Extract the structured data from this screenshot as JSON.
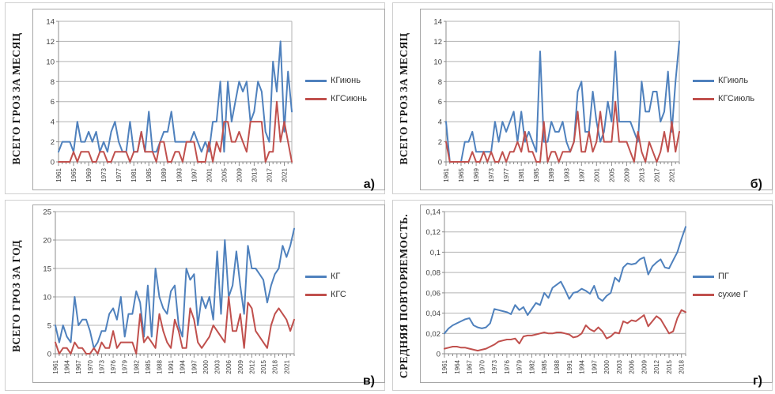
{
  "colors": {
    "series_blue": "#4F81BD",
    "series_red": "#C0504D",
    "grid": "#b3b3b3",
    "axis": "#8c8c8c",
    "plot_border": "#b3b3b3",
    "tick_text": "#3f3f3f",
    "box_border": "#a6a6a6"
  },
  "chart_data": [
    {
      "id": "a",
      "type": "line",
      "panel_label": "а)",
      "title": "",
      "xlabel": "",
      "ylabel": "ВСЕГО ГРОЗ ЗА МЕСЯЦ",
      "ylim": [
        0,
        14
      ],
      "y_tick_labels": [
        "0",
        "2",
        "4",
        "6",
        "8",
        "10",
        "12",
        "14"
      ],
      "x_start": 1961,
      "x_end": 2023,
      "x_tick_labels": [
        "1961",
        "1965",
        "1969",
        "1973",
        "1977",
        "1981",
        "1985",
        "1989",
        "1993",
        "1997",
        "2001",
        "2005",
        "2009",
        "2013",
        "2017",
        "2021"
      ],
      "grid": true,
      "legend_position": "right",
      "series": [
        {
          "name": "КГиюнь",
          "color": "series_blue",
          "values": [
            1,
            2,
            2,
            2,
            1,
            4,
            2,
            2,
            3,
            2,
            3,
            1,
            2,
            1,
            3,
            4,
            2,
            1,
            1,
            4,
            1,
            1,
            3,
            1,
            5,
            1,
            1,
            2,
            3,
            3,
            5,
            2,
            2,
            2,
            2,
            2,
            3,
            2,
            1,
            2,
            1,
            4,
            4,
            8,
            1,
            8,
            4,
            6,
            8,
            7,
            8,
            4,
            5,
            8,
            7,
            3,
            2,
            10,
            7,
            12,
            3,
            9,
            5
          ]
        },
        {
          "name": "КГСиюнь",
          "color": "series_red",
          "values": [
            0,
            0,
            0,
            0,
            1,
            0,
            1,
            1,
            1,
            0,
            0,
            1,
            1,
            0,
            0,
            1,
            1,
            1,
            1,
            0,
            1,
            1,
            3,
            1,
            1,
            1,
            0,
            2,
            2,
            0,
            0,
            1,
            1,
            0,
            2,
            2,
            2,
            0,
            0,
            0,
            2,
            0,
            2,
            1,
            4,
            4,
            2,
            2,
            3,
            2,
            1,
            4,
            4,
            4,
            4,
            0,
            1,
            1,
            6,
            2,
            4,
            2,
            0
          ]
        }
      ]
    },
    {
      "id": "b",
      "type": "line",
      "panel_label": "б)",
      "title": "",
      "xlabel": "",
      "ylabel": "ВСЕГО ГРОЗ ЗА МЕСЯЦ",
      "ylim": [
        0,
        14
      ],
      "y_tick_labels": [
        "0",
        "2",
        "4",
        "6",
        "8",
        "10",
        "12",
        "14"
      ],
      "x_start": 1961,
      "x_end": 2023,
      "x_tick_labels": [
        "1961",
        "1965",
        "1969",
        "1973",
        "1977",
        "1981",
        "1985",
        "1989",
        "1993",
        "1997",
        "2001",
        "2005",
        "2009",
        "2013",
        "2017",
        "2021"
      ],
      "grid": true,
      "legend_position": "right",
      "series": [
        {
          "name": "КГиюль",
          "color": "series_blue",
          "values": [
            4,
            0,
            0,
            0,
            0,
            2,
            2,
            3,
            1,
            1,
            1,
            1,
            1,
            4,
            2,
            4,
            3,
            4,
            5,
            2,
            5,
            2,
            3,
            2,
            1,
            11,
            2,
            2,
            4,
            3,
            3,
            4,
            2,
            1,
            2,
            7,
            8,
            3,
            3,
            7,
            4,
            2,
            3,
            6,
            4,
            11,
            4,
            4,
            4,
            4,
            3,
            2,
            8,
            5,
            5,
            7,
            7,
            4,
            5,
            9,
            3,
            8,
            12
          ]
        },
        {
          "name": "КГСиюль",
          "color": "series_red",
          "values": [
            2,
            0,
            0,
            0,
            0,
            0,
            0,
            1,
            0,
            0,
            1,
            0,
            1,
            0,
            0,
            1,
            0,
            1,
            1,
            2,
            1,
            3,
            1,
            1,
            0,
            0,
            4,
            0,
            1,
            1,
            0,
            1,
            1,
            1,
            2,
            5,
            1,
            1,
            3,
            1,
            2,
            5,
            2,
            2,
            2,
            6,
            2,
            2,
            2,
            1,
            0,
            3,
            1,
            0,
            2,
            1,
            0,
            1,
            3,
            1,
            4,
            1,
            3
          ]
        }
      ]
    },
    {
      "id": "v",
      "type": "line",
      "panel_label": "в)",
      "title": "",
      "xlabel": "",
      "ylabel": "ВСЕГО ГРОЗ ЗА ГОД",
      "ylim": [
        0,
        25
      ],
      "y_tick_labels": [
        "0",
        "5",
        "10",
        "15",
        "20",
        "25"
      ],
      "x_start": 1961,
      "x_end": 2023,
      "x_tick_labels": [
        "1961",
        "1964",
        "1967",
        "1970",
        "1973",
        "1976",
        "1979",
        "1982",
        "1985",
        "1988",
        "1991",
        "1994",
        "1997",
        "2000",
        "2003",
        "2006",
        "2009",
        "2012",
        "2015",
        "2018",
        "2021"
      ],
      "grid": true,
      "legend_position": "right",
      "series": [
        {
          "name": "КГ",
          "color": "series_blue",
          "values": [
            5,
            2,
            5,
            3,
            2,
            10,
            5,
            6,
            6,
            4,
            1,
            2,
            4,
            4,
            7,
            8,
            6,
            10,
            3,
            7,
            7,
            11,
            9,
            3,
            12,
            3,
            15,
            10,
            8,
            7,
            11,
            12,
            5,
            3,
            15,
            13,
            14,
            5,
            10,
            8,
            10,
            6,
            18,
            7,
            20,
            10,
            12,
            18,
            12,
            7,
            19,
            15,
            15,
            14,
            13,
            9,
            12,
            14,
            15,
            19,
            17,
            19,
            22
          ]
        },
        {
          "name": "КГС",
          "color": "series_red",
          "values": [
            2,
            0,
            1,
            1,
            0,
            2,
            1,
            1,
            0,
            0,
            1,
            0,
            2,
            1,
            1,
            4,
            1,
            2,
            2,
            2,
            2,
            0,
            7,
            2,
            3,
            2,
            1,
            7,
            4,
            2,
            1,
            6,
            4,
            1,
            1,
            8,
            6,
            2,
            1,
            2,
            3,
            5,
            4,
            3,
            2,
            10,
            4,
            4,
            7,
            1,
            9,
            8,
            4,
            3,
            2,
            1,
            5,
            7,
            8,
            7,
            6,
            4,
            6
          ]
        }
      ]
    },
    {
      "id": "g",
      "type": "line",
      "panel_label": "г)",
      "title": "",
      "xlabel": "",
      "ylabel": "СРЕДНЯЯ ПОВТОРЯЕМОСТЬ.",
      "ylim": [
        0,
        0.14
      ],
      "y_tick_labels": [
        "0",
        "0,02",
        "0,04",
        "0,06",
        "0,08",
        "0,1",
        "0,12",
        "0,14"
      ],
      "x_start": 1961,
      "x_end": 2019,
      "x_tick_labels": [
        "1961",
        "1964",
        "1967",
        "1970",
        "1973",
        "1976",
        "1979",
        "1982",
        "1985",
        "1988",
        "1991",
        "1994",
        "1997",
        "2000",
        "2003",
        "2006",
        "2009",
        "2012",
        "2015",
        "2018"
      ],
      "grid": true,
      "legend_position": "right",
      "series": [
        {
          "name": "ПГ",
          "color": "series_blue",
          "values": [
            0.02,
            0.025,
            0.028,
            0.03,
            0.032,
            0.034,
            0.035,
            0.028,
            0.026,
            0.025,
            0.026,
            0.03,
            0.044,
            0.043,
            0.042,
            0.041,
            0.039,
            0.048,
            0.043,
            0.046,
            0.038,
            0.044,
            0.05,
            0.048,
            0.06,
            0.055,
            0.065,
            0.068,
            0.071,
            0.063,
            0.054,
            0.06,
            0.061,
            0.064,
            0.062,
            0.059,
            0.067,
            0.055,
            0.052,
            0.057,
            0.06,
            0.075,
            0.071,
            0.085,
            0.089,
            0.088,
            0.089,
            0.093,
            0.095,
            0.078,
            0.086,
            0.09,
            0.093,
            0.085,
            0.084,
            0.092,
            0.1,
            0.113,
            0.125
          ]
        },
        {
          "name": "сухие Г",
          "color": "series_red",
          "values": [
            0.005,
            0.006,
            0.007,
            0.007,
            0.006,
            0.006,
            0.005,
            0.004,
            0.003,
            0.004,
            0.005,
            0.007,
            0.009,
            0.012,
            0.013,
            0.014,
            0.014,
            0.015,
            0.01,
            0.017,
            0.018,
            0.018,
            0.019,
            0.02,
            0.021,
            0.02,
            0.02,
            0.021,
            0.021,
            0.02,
            0.019,
            0.016,
            0.017,
            0.02,
            0.028,
            0.024,
            0.022,
            0.026,
            0.022,
            0.015,
            0.017,
            0.021,
            0.02,
            0.032,
            0.03,
            0.033,
            0.032,
            0.035,
            0.038,
            0.027,
            0.032,
            0.037,
            0.034,
            0.027,
            0.02,
            0.022,
            0.035,
            0.043,
            0.041
          ]
        }
      ]
    }
  ]
}
